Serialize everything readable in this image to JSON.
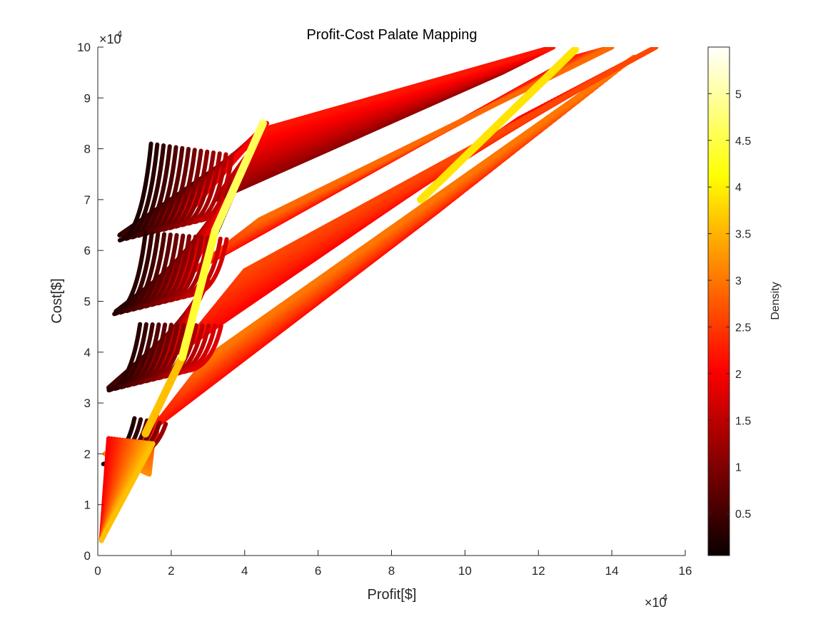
{
  "chart_data": {
    "type": "scatter",
    "title": "Profit-Cost Palate Mapping",
    "xlabel": "Profit[$]",
    "ylabel": "Cost[$]",
    "xlim": [
      0,
      16
    ],
    "ylim": [
      0,
      10
    ],
    "x_multiplier": "×10",
    "y_multiplier": "×10",
    "x_exponent": "4",
    "y_exponent": "4",
    "x_ticks": [
      "0",
      "2",
      "4",
      "6",
      "8",
      "10",
      "12",
      "14",
      "16"
    ],
    "y_ticks": [
      "0",
      "1",
      "2",
      "3",
      "4",
      "5",
      "6",
      "7",
      "8",
      "9",
      "10"
    ],
    "grid": false,
    "colormap": "hot",
    "colorbar": {
      "label": "Density",
      "range": [
        0.05,
        5.5
      ],
      "ticks": [
        "0.5",
        "1",
        "1.5",
        "2",
        "2.5",
        "3",
        "3.5",
        "4",
        "4.5",
        "5"
      ]
    },
    "series": [
      {
        "bands": [
          {
            "x_start": [
              0.2,
              1.6
            ],
            "y_start": [
              2.0,
              2.3
            ],
            "x_end": [
              1.4,
              1.6
            ],
            "y_end": [
              1.6,
              2.9
            ]
          },
          {
            "x_start": [
              0.3,
              1.8
            ],
            "y_start": [
              3.3,
              3.6
            ],
            "x_end": [
              2.2,
              3.0
            ],
            "y_end": [
              4.5,
              5.4
            ]
          },
          {
            "x_start": [
              0.5,
              2.2
            ],
            "y_start": [
              4.8,
              5.1
            ],
            "x_end": [
              3.2,
              4.4
            ],
            "y_end": [
              6.3,
              8.3
            ]
          },
          {
            "x_start": [
              0.6,
              2.3
            ],
            "y_start": [
              6.3,
              6.6
            ],
            "x_end": [
              4.0,
              4.6
            ],
            "y_end": [
              8.0,
              8.5
            ]
          },
          {
            "x_start": [
              1.5,
              3.0
            ],
            "y_start": [
              2.5,
              3.9
            ],
            "x_end": [
              9.3,
              14.6
            ],
            "y_end": [
              6.8,
              9.8
            ]
          },
          {
            "x_start": [
              2.2,
              4.0
            ],
            "y_start": [
              4.0,
              5.6
            ],
            "x_end": [
              11.5,
              15.2
            ],
            "y_end": [
              8.6,
              10.0
            ]
          },
          {
            "x_start": [
              2.6,
              4.4
            ],
            "y_start": [
              5.6,
              6.6
            ],
            "x_end": [
              13.0,
              14.0
            ],
            "y_end": [
              9.8,
              10.0
            ]
          },
          {
            "x_start": [
              3.2,
              4.6
            ],
            "y_start": [
              7.0,
              8.4
            ],
            "x_end": [
              11.0,
              12.4
            ],
            "y_end": [
              9.5,
              10.0
            ]
          }
        ],
        "yellow_band": {
          "x": [
            1.3,
            13.0
          ],
          "y": [
            2.4,
            10.0
          ]
        },
        "fan": {
          "x": [
            0.1,
            1.5
          ],
          "y": [
            0.3,
            2.3
          ]
        }
      }
    ]
  }
}
